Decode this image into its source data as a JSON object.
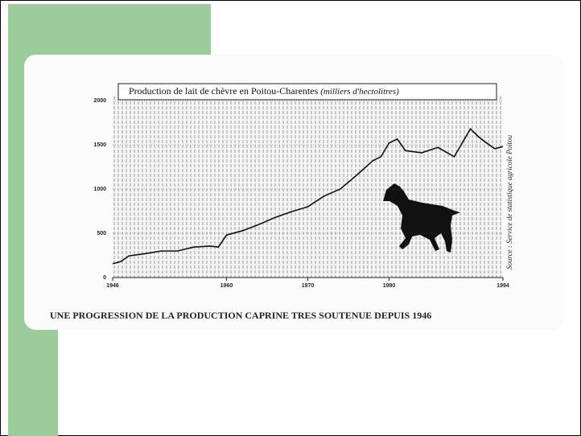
{
  "chart_data": {
    "type": "line",
    "title": "Production de lait de chèvre en Poitou-Charentes",
    "subtitle": "(milliers d'hectolitres)",
    "source": "Source : Service de statistique agricole Poitou",
    "caption": "UNE PROGRESSION DE LA PRODUCTION CAPRINE TRES SOUTENUE DEPUIS 1946",
    "x": [
      1946,
      1947,
      1948,
      1950,
      1952,
      1954,
      1956,
      1958,
      1959,
      1960,
      1962,
      1964,
      1966,
      1968,
      1970,
      1972,
      1974,
      1976,
      1978,
      1979,
      1980,
      1981,
      1982,
      1984,
      1986,
      1988,
      1990,
      1991,
      1992,
      1993,
      1994
    ],
    "values": [
      155,
      180,
      245,
      270,
      300,
      300,
      345,
      355,
      345,
      480,
      530,
      600,
      680,
      745,
      800,
      920,
      1000,
      1155,
      1320,
      1365,
      1520,
      1565,
      1435,
      1410,
      1470,
      1365,
      1680,
      1590,
      1520,
      1455,
      1480
    ],
    "color": "#111111",
    "xlim": [
      1946,
      1994
    ],
    "xticks": [
      1946,
      1960,
      1970,
      1980,
      1994
    ],
    "ylim": [
      0,
      2000
    ],
    "yticks": [
      0,
      500,
      1000,
      1500,
      2000
    ],
    "grid": true
  }
}
